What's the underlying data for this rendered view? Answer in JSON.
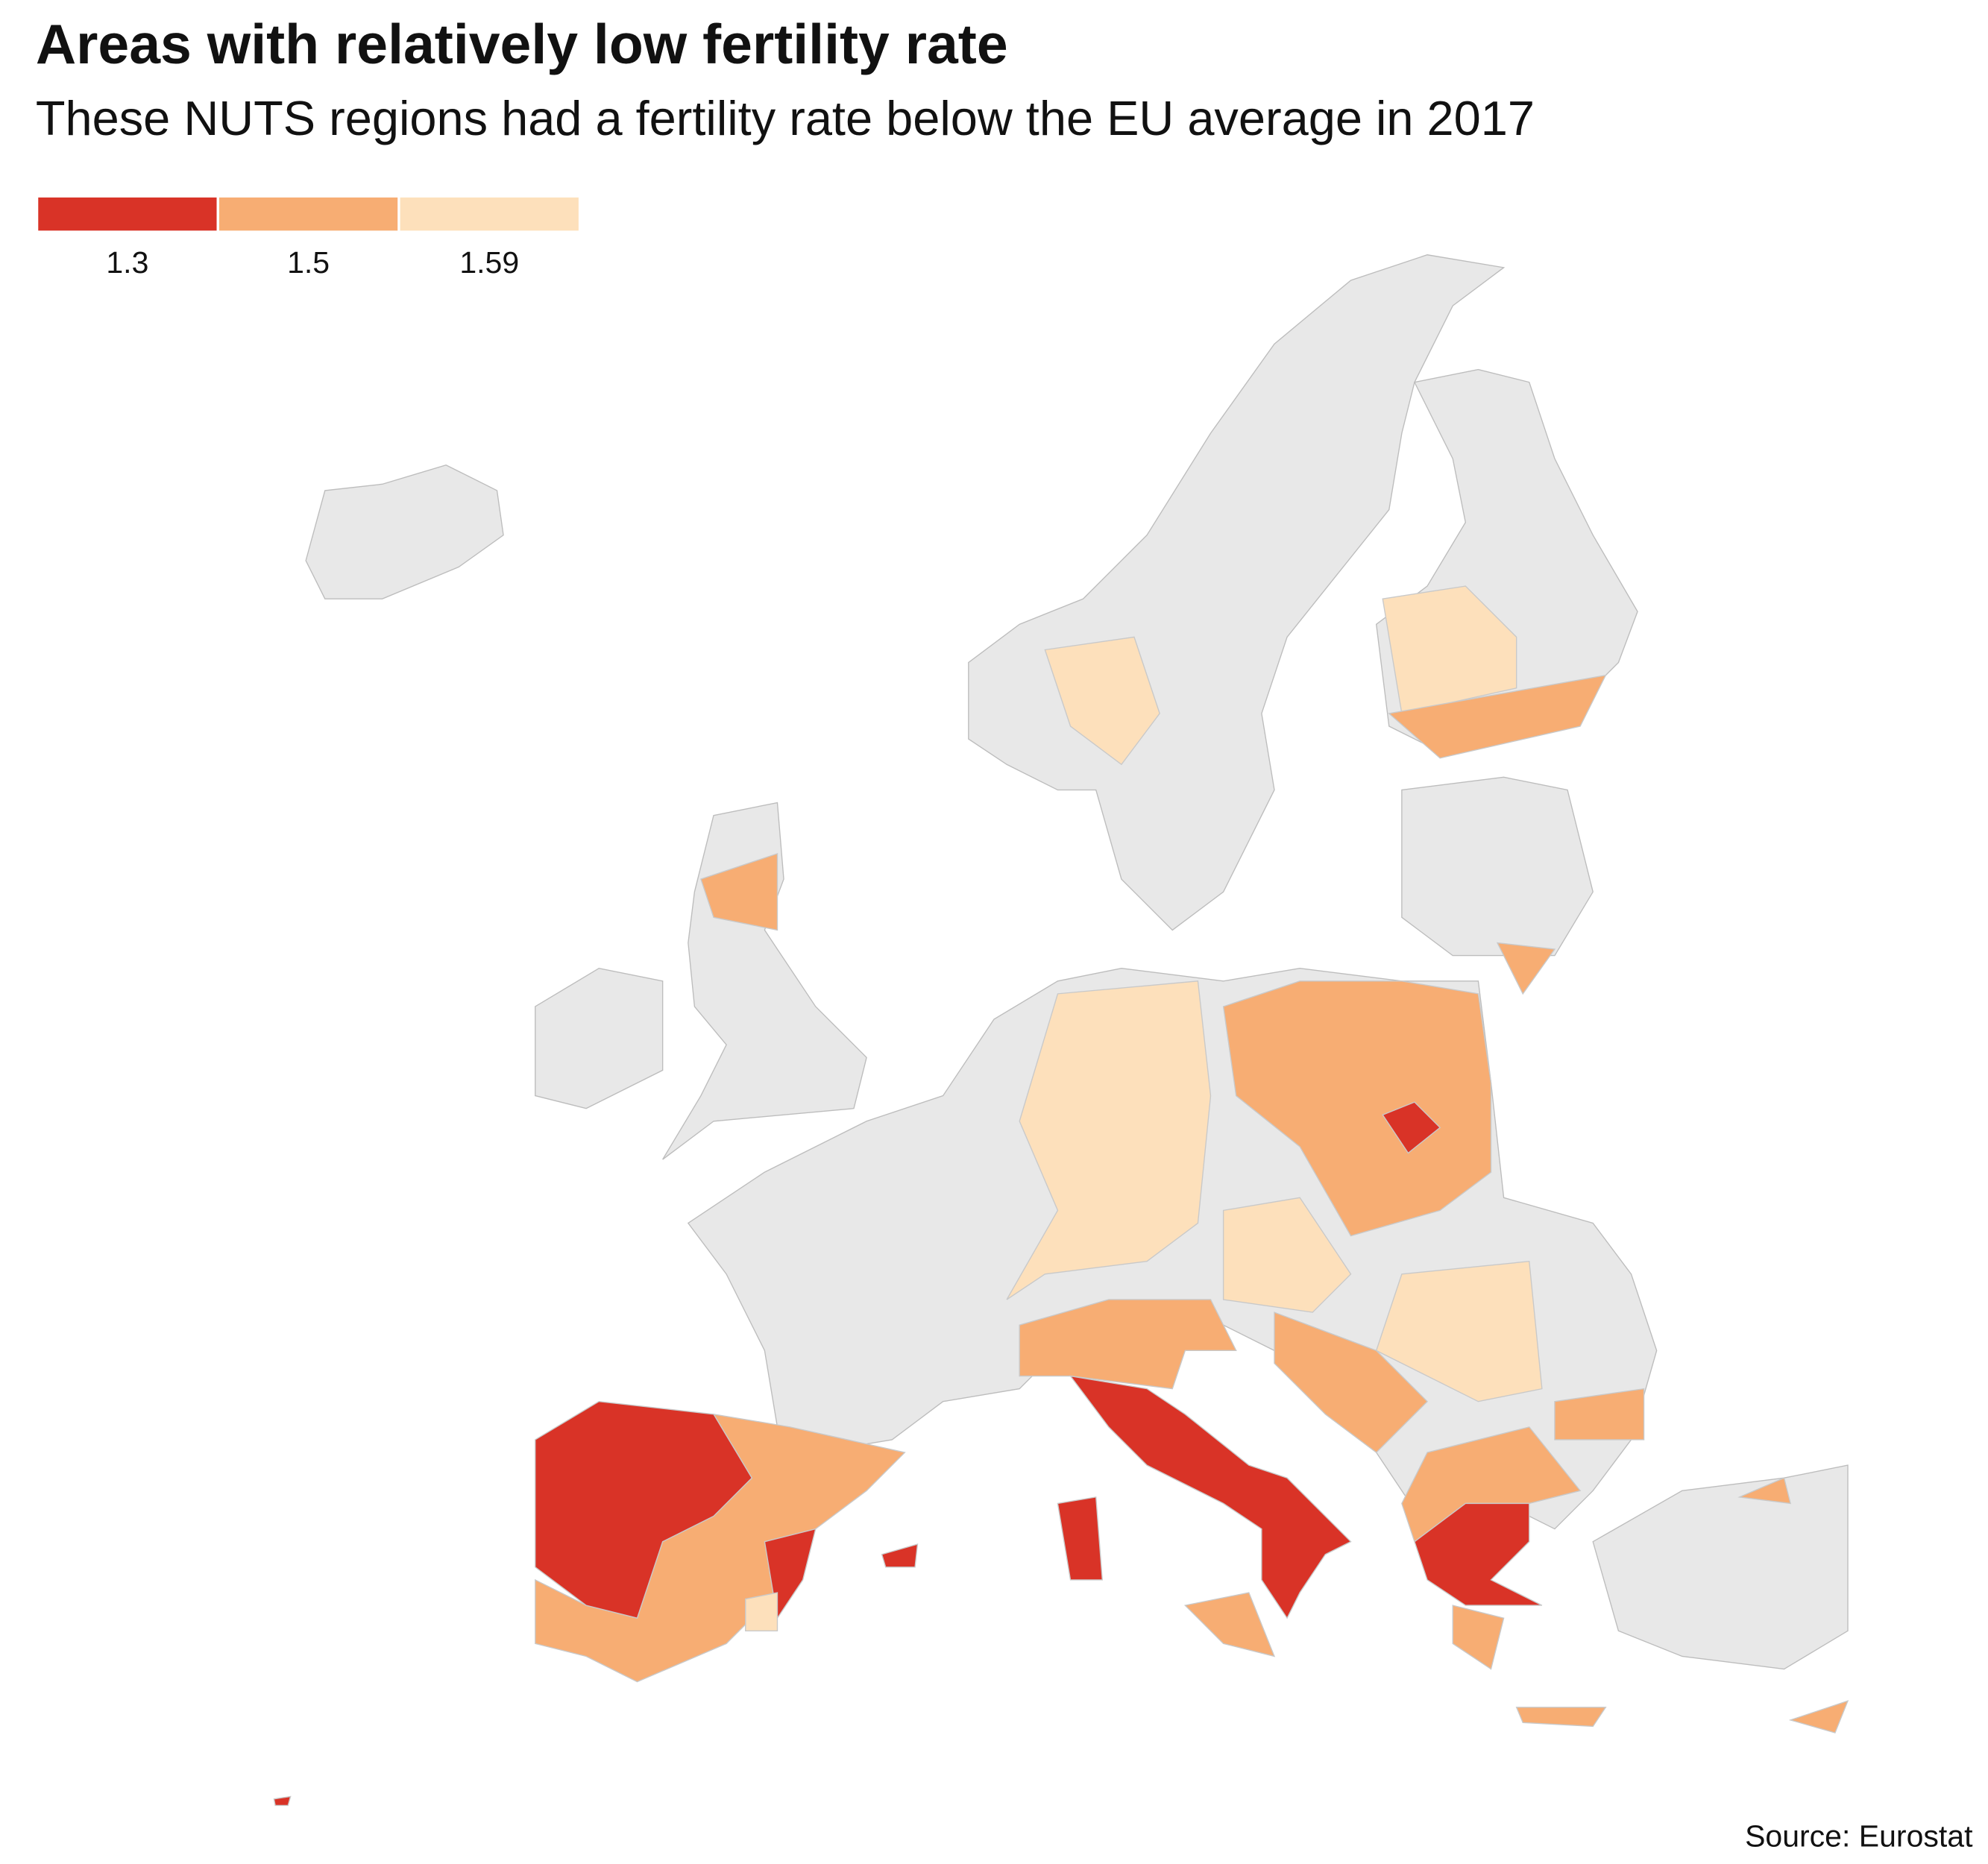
{
  "header": {
    "title": "Areas with relatively low fertility rate",
    "subtitle": "These NUTS regions had a fertility rate below the EU average in 2017"
  },
  "legend": [
    {
      "label": "1.3",
      "color": "#d93327"
    },
    {
      "label": "1.5",
      "color": "#f7ad73"
    },
    {
      "label": "1.59",
      "color": "#fde0bb"
    }
  ],
  "source": "Source: Eurostat"
}
